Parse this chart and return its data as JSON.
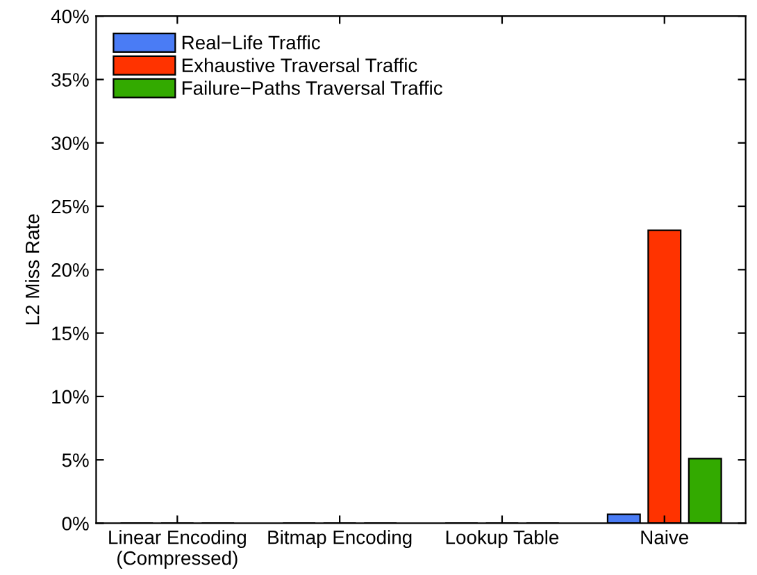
{
  "chart_data": {
    "type": "bar",
    "ylabel": "L2 Miss Rate",
    "categories": [
      "Linear Encoding\n(Compressed)",
      "Bitmap Encoding",
      "Lookup Table",
      "Naive"
    ],
    "series": [
      {
        "name": "Real−Life Traffic",
        "color": "#4a7cf5",
        "values": [
          0,
          0,
          0,
          0.7
        ]
      },
      {
        "name": "Exhaustive Traversal Traffic",
        "color": "#ff3300",
        "values": [
          0,
          0,
          0,
          23.1
        ]
      },
      {
        "name": "Failure−Paths Traversal Traffic",
        "color": "#33aa00",
        "values": [
          0,
          0,
          0,
          5.1
        ]
      }
    ],
    "ylim": [
      0,
      40
    ],
    "yticks": [
      {
        "value": 0,
        "label": "0%"
      },
      {
        "value": 5,
        "label": "5%"
      },
      {
        "value": 10,
        "label": "10%"
      },
      {
        "value": 15,
        "label": "15%"
      },
      {
        "value": 20,
        "label": "20%"
      },
      {
        "value": 25,
        "label": "25%"
      },
      {
        "value": 30,
        "label": "30%"
      },
      {
        "value": 35,
        "label": "35%"
      },
      {
        "value": 40,
        "label": "40%"
      }
    ],
    "grid": false,
    "legend": "top left"
  }
}
